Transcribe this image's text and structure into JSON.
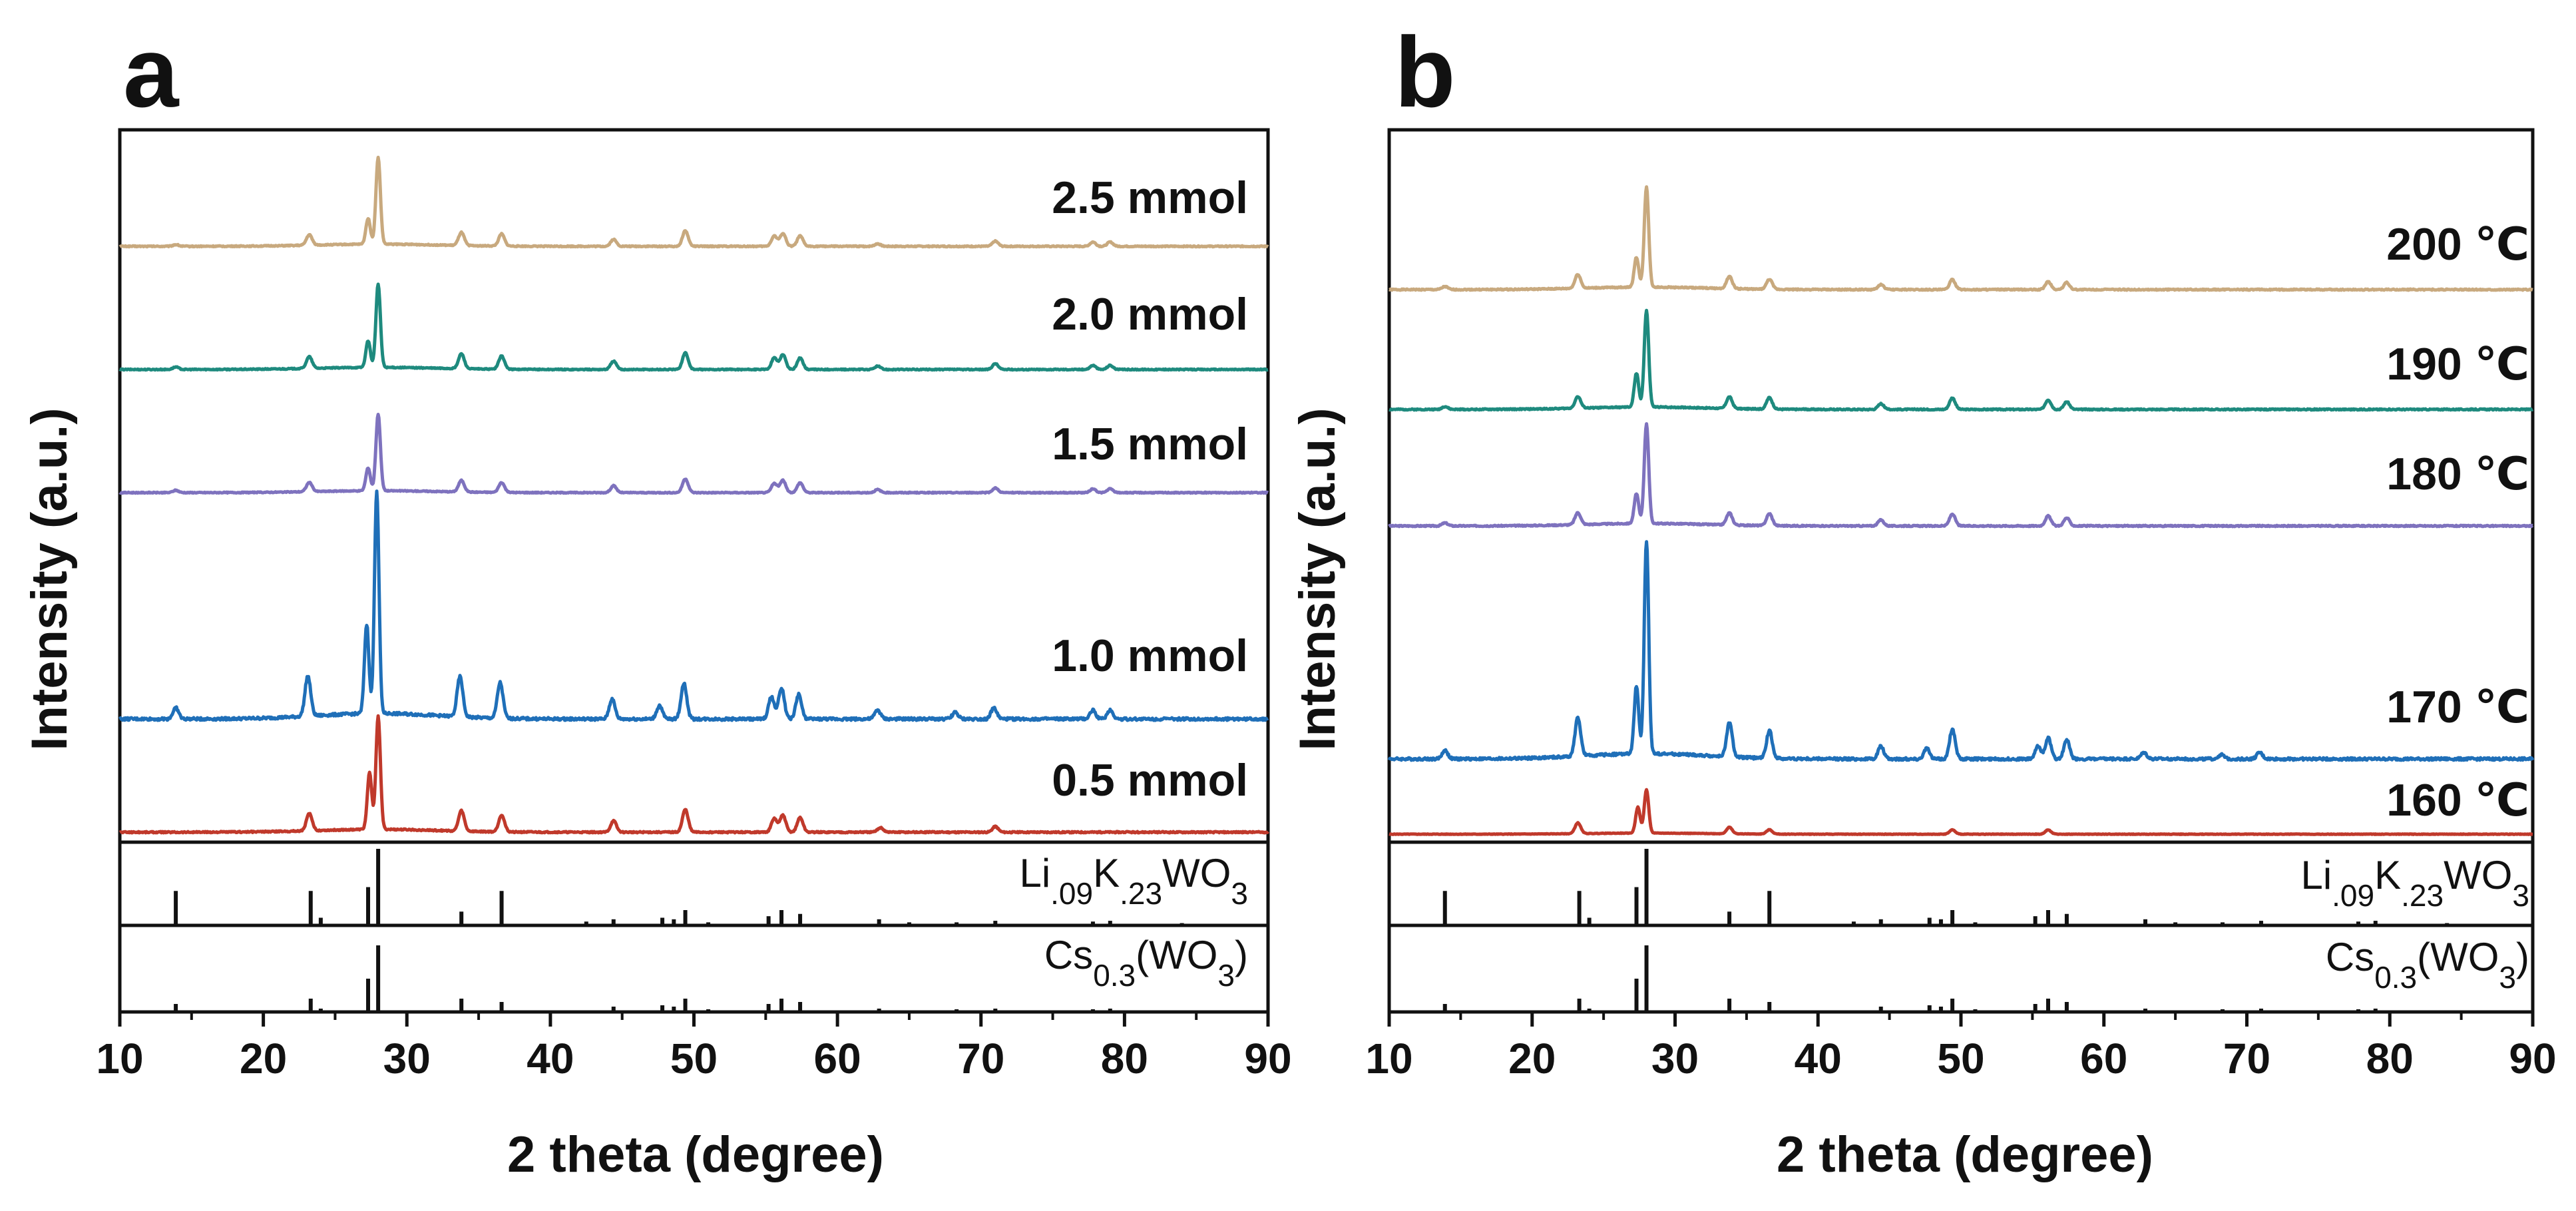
{
  "chart_data": [
    {
      "panel": "a",
      "type": "line",
      "xlabel": "2 theta (degree)",
      "ylabel": "Intensity (a.u.)",
      "xlim": [
        10,
        90
      ],
      "xticks": [
        "10",
        "20",
        "30",
        "40",
        "50",
        "60",
        "70",
        "80",
        "90"
      ],
      "series": [
        {
          "name": "2.5 mmol",
          "color": "#C8A97E",
          "peaks": [
            [
              13.9,
              0.02
            ],
            [
              23.2,
              0.12
            ],
            [
              27.3,
              0.3
            ],
            [
              28.0,
              1.0
            ],
            [
              33.8,
              0.15
            ],
            [
              36.6,
              0.14
            ],
            [
              44.4,
              0.08
            ],
            [
              49.4,
              0.18
            ],
            [
              55.6,
              0.12
            ],
            [
              56.2,
              0.15
            ],
            [
              57.4,
              0.12
            ],
            [
              62.8,
              0.03
            ],
            [
              71.0,
              0.06
            ],
            [
              77.8,
              0.05
            ],
            [
              79.0,
              0.05
            ]
          ]
        },
        {
          "name": "2.0 mmol",
          "color": "#1E8A7E",
          "peaks": [
            [
              13.9,
              0.03
            ],
            [
              23.2,
              0.14
            ],
            [
              27.3,
              0.32
            ],
            [
              28.0,
              1.0
            ],
            [
              33.8,
              0.18
            ],
            [
              36.6,
              0.16
            ],
            [
              44.4,
              0.1
            ],
            [
              49.4,
              0.2
            ],
            [
              55.6,
              0.14
            ],
            [
              56.2,
              0.18
            ],
            [
              57.4,
              0.14
            ],
            [
              62.8,
              0.04
            ],
            [
              71.0,
              0.07
            ],
            [
              77.8,
              0.05
            ],
            [
              79.0,
              0.05
            ]
          ]
        },
        {
          "name": "1.5 mmol",
          "color": "#7E72BE",
          "peaks": [
            [
              13.9,
              0.03
            ],
            [
              23.2,
              0.12
            ],
            [
              27.3,
              0.3
            ],
            [
              28.0,
              1.0
            ],
            [
              33.8,
              0.15
            ],
            [
              36.6,
              0.13
            ],
            [
              44.4,
              0.09
            ],
            [
              49.4,
              0.18
            ],
            [
              55.6,
              0.12
            ],
            [
              56.2,
              0.16
            ],
            [
              57.4,
              0.13
            ],
            [
              62.8,
              0.04
            ],
            [
              71.0,
              0.06
            ],
            [
              77.8,
              0.05
            ],
            [
              79.0,
              0.05
            ]
          ]
        },
        {
          "name": "1.0 mmol",
          "color": "#1F6FB8",
          "peaks": [
            [
              13.9,
              0.05
            ],
            [
              23.1,
              0.18
            ],
            [
              27.2,
              0.4
            ],
            [
              27.9,
              1.0
            ],
            [
              33.7,
              0.18
            ],
            [
              36.5,
              0.16
            ],
            [
              44.3,
              0.09
            ],
            [
              47.6,
              0.06
            ],
            [
              49.3,
              0.16
            ],
            [
              55.4,
              0.1
            ],
            [
              56.1,
              0.14
            ],
            [
              57.3,
              0.11
            ],
            [
              62.8,
              0.04
            ],
            [
              68.2,
              0.03
            ],
            [
              70.9,
              0.05
            ],
            [
              77.8,
              0.04
            ],
            [
              79.0,
              0.04
            ]
          ]
        },
        {
          "name": "0.5 mmol",
          "color": "#C0392B",
          "peaks": [
            [
              23.2,
              0.15
            ],
            [
              27.4,
              0.5
            ],
            [
              28.0,
              1.0
            ],
            [
              33.8,
              0.18
            ],
            [
              36.6,
              0.15
            ],
            [
              44.4,
              0.1
            ],
            [
              49.4,
              0.2
            ],
            [
              55.6,
              0.12
            ],
            [
              56.2,
              0.15
            ],
            [
              57.4,
              0.13
            ],
            [
              63.0,
              0.04
            ],
            [
              71.0,
              0.05
            ]
          ]
        }
      ],
      "reference_patterns": [
        {
          "name": "Li.09K.23WO3",
          "sticks": [
            [
              13.9,
              0.45
            ],
            [
              23.3,
              0.45
            ],
            [
              24.0,
              0.1
            ],
            [
              27.3,
              0.5
            ],
            [
              28.0,
              1.0
            ],
            [
              33.8,
              0.18
            ],
            [
              36.6,
              0.45
            ],
            [
              42.5,
              0.05
            ],
            [
              44.4,
              0.08
            ],
            [
              47.8,
              0.1
            ],
            [
              48.6,
              0.08
            ],
            [
              49.4,
              0.2
            ],
            [
              51.0,
              0.04
            ],
            [
              55.2,
              0.12
            ],
            [
              56.1,
              0.2
            ],
            [
              57.4,
              0.15
            ],
            [
              62.9,
              0.08
            ],
            [
              65.0,
              0.04
            ],
            [
              68.3,
              0.04
            ],
            [
              71.0,
              0.06
            ],
            [
              77.8,
              0.05
            ],
            [
              79.0,
              0.06
            ],
            [
              84.0,
              0.03
            ]
          ]
        },
        {
          "name": "Cs0.3(WO3)",
          "sticks": [
            [
              13.9,
              0.12
            ],
            [
              23.3,
              0.2
            ],
            [
              24.0,
              0.05
            ],
            [
              27.3,
              0.5
            ],
            [
              28.0,
              1.0
            ],
            [
              33.8,
              0.2
            ],
            [
              36.6,
              0.15
            ],
            [
              44.4,
              0.08
            ],
            [
              47.8,
              0.1
            ],
            [
              48.6,
              0.08
            ],
            [
              49.4,
              0.2
            ],
            [
              51.0,
              0.04
            ],
            [
              55.2,
              0.12
            ],
            [
              56.1,
              0.2
            ],
            [
              57.4,
              0.15
            ],
            [
              62.9,
              0.05
            ],
            [
              68.3,
              0.04
            ],
            [
              71.0,
              0.05
            ],
            [
              77.8,
              0.04
            ],
            [
              79.0,
              0.05
            ]
          ]
        }
      ]
    },
    {
      "panel": "b",
      "type": "line",
      "xlabel": "2 theta (degree)",
      "ylabel": "Intensity (a.u.)",
      "xlim": [
        10,
        90
      ],
      "xticks": [
        "10",
        "20",
        "30",
        "40",
        "50",
        "60",
        "70",
        "80",
        "90"
      ],
      "series": [
        {
          "name": "200 ℃",
          "color": "#C8A97E",
          "peaks": [
            [
              13.9,
              0.03
            ],
            [
              23.2,
              0.14
            ],
            [
              27.3,
              0.3
            ],
            [
              28.0,
              1.0
            ],
            [
              33.8,
              0.12
            ],
            [
              36.6,
              0.1
            ],
            [
              44.4,
              0.05
            ],
            [
              49.4,
              0.1
            ],
            [
              56.1,
              0.08
            ],
            [
              57.4,
              0.07
            ]
          ]
        },
        {
          "name": "190 ℃",
          "color": "#1E8A7E",
          "peaks": [
            [
              13.9,
              0.03
            ],
            [
              23.2,
              0.12
            ],
            [
              27.3,
              0.35
            ],
            [
              28.0,
              1.0
            ],
            [
              33.8,
              0.12
            ],
            [
              36.6,
              0.12
            ],
            [
              44.4,
              0.06
            ],
            [
              49.4,
              0.12
            ],
            [
              56.1,
              0.1
            ],
            [
              57.4,
              0.08
            ]
          ]
        },
        {
          "name": "180 ℃",
          "color": "#7E72BE",
          "peaks": [
            [
              13.9,
              0.03
            ],
            [
              23.2,
              0.12
            ],
            [
              27.3,
              0.3
            ],
            [
              28.0,
              1.0
            ],
            [
              33.8,
              0.12
            ],
            [
              36.6,
              0.12
            ],
            [
              44.4,
              0.06
            ],
            [
              49.4,
              0.12
            ],
            [
              56.1,
              0.1
            ],
            [
              57.4,
              0.08
            ]
          ]
        },
        {
          "name": "170 ℃",
          "color": "#1F6FB8",
          "peaks": [
            [
              13.9,
              0.04
            ],
            [
              23.2,
              0.18
            ],
            [
              27.3,
              0.32
            ],
            [
              28.0,
              1.0
            ],
            [
              33.8,
              0.16
            ],
            [
              36.6,
              0.13
            ],
            [
              44.4,
              0.06
            ],
            [
              47.6,
              0.05
            ],
            [
              49.4,
              0.14
            ],
            [
              55.4,
              0.06
            ],
            [
              56.1,
              0.1
            ],
            [
              57.4,
              0.09
            ],
            [
              62.8,
              0.03
            ],
            [
              68.2,
              0.02
            ],
            [
              70.9,
              0.03
            ]
          ]
        },
        {
          "name": "160 ℃",
          "color": "#C0392B",
          "peaks": [
            [
              23.2,
              0.25
            ],
            [
              27.4,
              0.6
            ],
            [
              28.0,
              1.0
            ],
            [
              33.8,
              0.15
            ],
            [
              36.6,
              0.1
            ],
            [
              49.4,
              0.1
            ],
            [
              56.1,
              0.1
            ]
          ]
        }
      ],
      "reference_patterns": [
        {
          "name": "Li.09K.23WO3",
          "sticks": [
            [
              13.9,
              0.45
            ],
            [
              23.3,
              0.45
            ],
            [
              24.0,
              0.1
            ],
            [
              27.3,
              0.5
            ],
            [
              28.0,
              1.0
            ],
            [
              33.8,
              0.18
            ],
            [
              36.6,
              0.45
            ],
            [
              42.5,
              0.05
            ],
            [
              44.4,
              0.08
            ],
            [
              47.8,
              0.1
            ],
            [
              48.6,
              0.08
            ],
            [
              49.4,
              0.2
            ],
            [
              51.0,
              0.04
            ],
            [
              55.2,
              0.12
            ],
            [
              56.1,
              0.2
            ],
            [
              57.4,
              0.15
            ],
            [
              62.9,
              0.08
            ],
            [
              65.0,
              0.04
            ],
            [
              68.3,
              0.04
            ],
            [
              71.0,
              0.06
            ],
            [
              77.8,
              0.05
            ],
            [
              79.0,
              0.06
            ],
            [
              84.0,
              0.03
            ]
          ]
        },
        {
          "name": "Cs0.3(WO3)",
          "sticks": [
            [
              13.9,
              0.12
            ],
            [
              23.3,
              0.2
            ],
            [
              24.0,
              0.05
            ],
            [
              27.3,
              0.5
            ],
            [
              28.0,
              1.0
            ],
            [
              33.8,
              0.2
            ],
            [
              36.6,
              0.15
            ],
            [
              44.4,
              0.08
            ],
            [
              47.8,
              0.1
            ],
            [
              48.6,
              0.08
            ],
            [
              49.4,
              0.2
            ],
            [
              51.0,
              0.04
            ],
            [
              55.2,
              0.12
            ],
            [
              56.1,
              0.2
            ],
            [
              57.4,
              0.15
            ],
            [
              62.9,
              0.05
            ],
            [
              68.3,
              0.04
            ],
            [
              71.0,
              0.05
            ],
            [
              77.8,
              0.04
            ],
            [
              79.0,
              0.05
            ]
          ]
        }
      ]
    }
  ]
}
